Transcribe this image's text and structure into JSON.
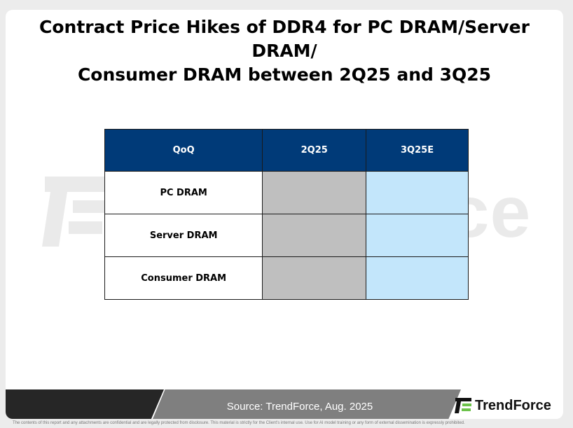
{
  "title_line1": "Contract Price Hikes of DDR4 for PC DRAM/Server DRAM/",
  "title_line2": "Consumer DRAM between 2Q25 and 3Q25",
  "watermark_text": "TrendForce",
  "chart_data": {
    "type": "table",
    "columns": [
      "QoQ",
      "2Q25",
      "3Q25E"
    ],
    "rows": [
      {
        "label": "PC DRAM",
        "2Q25": "",
        "3Q25E": ""
      },
      {
        "label": "Server DRAM",
        "2Q25": "",
        "3Q25E": ""
      },
      {
        "label": "Consumer DRAM",
        "2Q25": "",
        "3Q25E": ""
      }
    ],
    "colors": {
      "header": "#003a78",
      "col_2q25": "#bfbfbf",
      "col_3q25e": "#c3e6fb"
    }
  },
  "footer": {
    "source": "Source: TrendForce, Aug. 2025",
    "brand": "TrendForce",
    "disclaimer": "The contents of this report and any attachments are confidential and are legally protected from disclosure. This material is strictly for the Client's internal use. Use for AI model training or any form of external dissemination is expressly prohibited."
  },
  "icons": {
    "logo": "trendforce-logo-icon"
  }
}
